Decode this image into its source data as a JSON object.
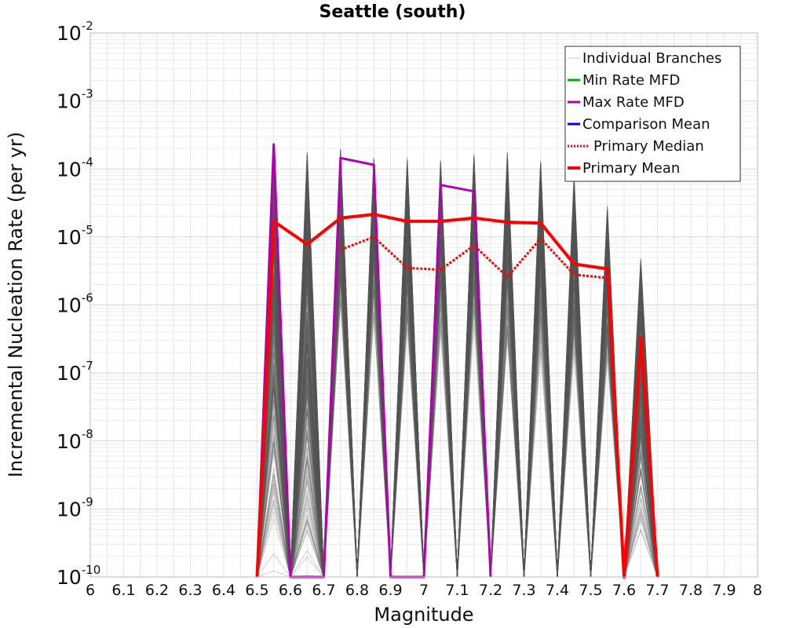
{
  "chart_data": {
    "type": "line",
    "title": "Seattle (south)",
    "xlabel": "Magnitude",
    "ylabel": "Incremental Nucleation Rate (per yr)",
    "xlim": [
      6,
      8
    ],
    "ylim": [
      1e-10,
      0.01
    ],
    "yscale": "log",
    "grid": true,
    "legend_position": "top-right",
    "xticks": [
      "6",
      "6.1",
      "6.2",
      "6.3",
      "6.4",
      "6.5",
      "6.6",
      "6.7",
      "6.8",
      "6.9",
      "7",
      "7.1",
      "7.2",
      "7.3",
      "7.4",
      "7.5",
      "7.6",
      "7.7",
      "7.8",
      "7.9",
      "8"
    ],
    "yticks": [
      {
        "base": "10",
        "exp": "-10"
      },
      {
        "base": "10",
        "exp": "-9"
      },
      {
        "base": "10",
        "exp": "-8"
      },
      {
        "base": "10",
        "exp": "-7"
      },
      {
        "base": "10",
        "exp": "-6"
      },
      {
        "base": "10",
        "exp": "-5"
      },
      {
        "base": "10",
        "exp": "-4"
      },
      {
        "base": "10",
        "exp": "-3"
      },
      {
        "base": "10",
        "exp": "-2"
      }
    ],
    "series": [
      {
        "name": "Max Rate MFD",
        "color": "#b000b0",
        "x": [
          6.5,
          6.55,
          6.6,
          6.7,
          6.75,
          6.85,
          6.9,
          7.0,
          7.05,
          7.15,
          7.2
        ],
        "y": [
          1e-10,
          0.00023,
          1e-10,
          1e-10,
          0.000145,
          0.000115,
          1e-10,
          1e-10,
          5.8e-05,
          4.7e-05,
          1e-10
        ]
      },
      {
        "name": "Primary Median",
        "color": "#ff0000",
        "style": "dotted",
        "x": [
          6.75,
          6.85,
          6.95,
          7.05,
          7.15,
          7.25,
          7.35,
          7.45,
          7.55
        ],
        "y": [
          6.5e-06,
          1e-05,
          3.5e-06,
          3.3e-06,
          7.5e-06,
          2.6e-06,
          9.5e-06,
          2.8e-06,
          2.5e-06
        ]
      },
      {
        "name": "Primary Mean",
        "color": "#ff0000",
        "x": [
          6.5,
          6.55,
          6.65,
          6.75,
          6.85,
          6.95,
          7.05,
          7.15,
          7.25,
          7.35,
          7.45,
          7.55,
          7.6,
          7.65,
          7.7
        ],
        "y": [
          1e-10,
          1.7e-05,
          7.8e-06,
          1.9e-05,
          2.15e-05,
          1.7e-05,
          1.7e-05,
          1.9e-05,
          1.65e-05,
          1.6e-05,
          4e-06,
          3.4e-06,
          1e-10,
          3.3e-07,
          1e-10
        ]
      }
    ],
    "branches": {
      "name": "Individual Branches",
      "color": "#555555",
      "x": [
        6.55,
        6.65,
        6.75,
        6.85,
        6.95,
        7.05,
        7.15,
        7.25,
        7.35,
        7.45,
        7.55,
        7.65
      ],
      "upper": [
        0.00023,
        0.0002,
        0.0002,
        0.00016,
        0.00015,
        0.00014,
        0.00017,
        0.00018,
        0.00014,
        8e-05,
        3e-05,
        5e-06
      ],
      "lower": [
        1e-10,
        1e-10,
        8e-07,
        6e-07,
        4e-07,
        3e-07,
        5e-07,
        2e-07,
        2e-07,
        1.5e-07,
        1e-07,
        1e-10
      ]
    },
    "legend": [
      {
        "label": "Individual Branches",
        "color": "#c8c8c8",
        "style": "solid",
        "width": 1
      },
      {
        "label": "Min Rate MFD",
        "color": "#00b000",
        "style": "solid",
        "width": 3
      },
      {
        "label": "Max Rate MFD",
        "color": "#b000b0",
        "style": "solid",
        "width": 3
      },
      {
        "label": "Comparison Mean",
        "color": "#0000ff",
        "style": "solid",
        "width": 3
      },
      {
        "label": "Primary Median",
        "color": "#ff0000",
        "style": "dotted",
        "width": 3
      },
      {
        "label": "Primary Mean",
        "color": "#ff0000",
        "style": "solid",
        "width": 4
      }
    ]
  }
}
